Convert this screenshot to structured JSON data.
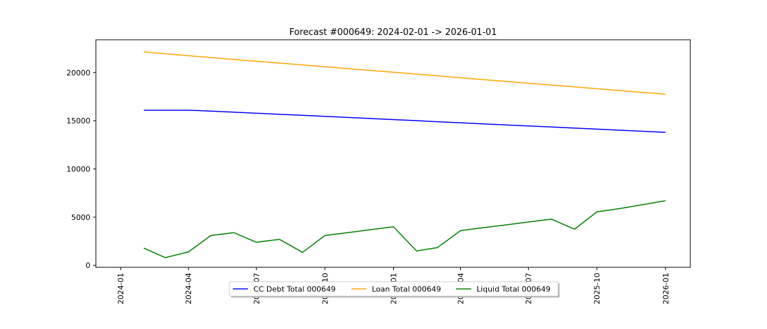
{
  "chart_data": {
    "type": "line",
    "title": "Forecast #000649: 2024-02-01 -> 2026-01-01",
    "xlabel": "",
    "ylabel": "",
    "x": [
      "2024-02-01",
      "2024-03-01",
      "2024-04-01",
      "2024-05-01",
      "2024-06-01",
      "2024-07-01",
      "2024-08-01",
      "2024-09-01",
      "2024-10-01",
      "2024-11-01",
      "2024-12-01",
      "2025-01-01",
      "2025-02-01",
      "2025-03-01",
      "2025-04-01",
      "2025-05-01",
      "2025-06-01",
      "2025-07-01",
      "2025-08-01",
      "2025-09-01",
      "2025-10-01",
      "2025-11-01",
      "2025-12-01",
      "2026-01-01"
    ],
    "xlim": [
      "2024-01-01",
      "2026-01-01"
    ],
    "ylim": [
      -200,
      23400
    ],
    "xticks": [
      "2024-01",
      "2024-04",
      "2024-07",
      "2024-10",
      "2025-01",
      "2025-04",
      "2025-07",
      "2025-10",
      "2026-01"
    ],
    "yticks": [
      0,
      5000,
      10000,
      15000,
      20000
    ],
    "grid": false,
    "legend": {
      "placement": "bottom-center",
      "columns": 3
    },
    "series": [
      {
        "name": "CC Debt Total 000649",
        "color": "#0000ff",
        "values": [
          16100,
          16100,
          16100,
          16000,
          15890,
          15780,
          15670,
          15560,
          15450,
          15340,
          15230,
          15120,
          15010,
          14900,
          14790,
          14680,
          14570,
          14460,
          14350,
          14240,
          14130,
          14020,
          13910,
          13800
        ]
      },
      {
        "name": "Loan Total 000649",
        "color": "#ffa500",
        "values": [
          22150,
          21950,
          21750,
          21560,
          21360,
          21170,
          20980,
          20790,
          20600,
          20410,
          20220,
          20030,
          19840,
          19650,
          19460,
          19270,
          19080,
          18890,
          18700,
          18510,
          18320,
          18130,
          17940,
          17750
        ]
      },
      {
        "name": "Liquid Total 000649",
        "color": "#008000",
        "values": [
          1800,
          800,
          1400,
          3100,
          3400,
          2400,
          2700,
          1350,
          3100,
          3400,
          3700,
          4000,
          1500,
          1850,
          3600,
          3900,
          4200,
          4500,
          4800,
          3750,
          5550,
          5900,
          6300,
          6700
        ]
      }
    ]
  }
}
